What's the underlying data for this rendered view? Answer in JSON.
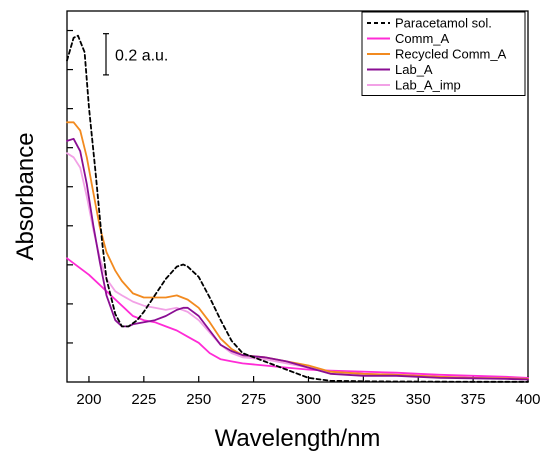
{
  "chart_data": {
    "type": "line",
    "title": "",
    "xlabel": "Wavelength/nm",
    "ylabel": "Absorbance",
    "xlim": [
      190,
      400
    ],
    "ylim": [
      0,
      1.8
    ],
    "x_ticks": [
      200,
      225,
      250,
      275,
      300,
      325,
      350,
      375,
      400
    ],
    "x_tick_labels": [
      "200",
      "225",
      "250",
      "275",
      "300",
      "325",
      "350",
      "375",
      "400"
    ],
    "y_tick_labels_shown": false,
    "grid": false,
    "legend_position": "top-right",
    "scale_bar": {
      "label": "0.2 a.u.",
      "value": 0.2
    },
    "series": [
      {
        "name": "Paracetamol sol.",
        "color": "#000000",
        "style": "dashed",
        "x": [
          190,
          193,
          195,
          198,
          200,
          203,
          206,
          208,
          212,
          215,
          218,
          222,
          225,
          230,
          235,
          240,
          243,
          245,
          250,
          255,
          260,
          265,
          270,
          280,
          290,
          300,
          310,
          330,
          350,
          375,
          400
        ],
        "y": [
          1.56,
          1.67,
          1.68,
          1.6,
          1.33,
          1.02,
          0.68,
          0.5,
          0.33,
          0.27,
          0.27,
          0.3,
          0.34,
          0.42,
          0.5,
          0.56,
          0.57,
          0.56,
          0.51,
          0.41,
          0.3,
          0.2,
          0.14,
          0.1,
          0.06,
          0.02,
          0.006,
          0.003,
          0.002,
          0.001,
          0.001
        ]
      },
      {
        "name": "Comm_A",
        "color": "#ff2bd6",
        "style": "solid",
        "x": [
          190,
          200,
          210,
          220,
          225,
          230,
          235,
          240,
          245,
          250,
          255,
          260,
          265,
          270,
          280,
          290,
          300,
          310,
          325,
          340,
          350,
          360,
          375,
          390,
          400
        ],
        "y": [
          0.6,
          0.52,
          0.42,
          0.32,
          0.3,
          0.29,
          0.27,
          0.25,
          0.22,
          0.19,
          0.14,
          0.11,
          0.1,
          0.09,
          0.08,
          0.07,
          0.06,
          0.055,
          0.05,
          0.045,
          0.04,
          0.035,
          0.03,
          0.025,
          0.02
        ]
      },
      {
        "name": "Recycled Comm_A",
        "color": "#f28a1f",
        "style": "solid",
        "x": [
          190,
          193,
          196,
          199,
          202,
          205,
          208,
          212,
          215,
          220,
          225,
          230,
          235,
          240,
          245,
          250,
          255,
          260,
          265,
          270,
          280,
          290,
          300,
          310,
          325,
          340,
          350,
          360,
          375,
          390,
          400
        ],
        "y": [
          1.26,
          1.26,
          1.22,
          1.09,
          0.92,
          0.75,
          0.63,
          0.54,
          0.49,
          0.43,
          0.41,
          0.41,
          0.41,
          0.42,
          0.4,
          0.36,
          0.29,
          0.21,
          0.16,
          0.13,
          0.12,
          0.1,
          0.08,
          0.05,
          0.04,
          0.035,
          0.03,
          0.025,
          0.02,
          0.018,
          0.015
        ]
      },
      {
        "name": "Lab_A",
        "color": "#8a0e93",
        "style": "solid",
        "x": [
          190,
          193,
          196,
          199,
          202,
          205,
          208,
          212,
          215,
          218,
          220,
          225,
          230,
          235,
          240,
          243,
          245,
          250,
          255,
          260,
          265,
          270,
          280,
          290,
          300,
          310,
          325,
          340,
          350,
          360,
          375,
          390,
          400
        ],
        "y": [
          1.17,
          1.18,
          1.12,
          0.96,
          0.76,
          0.58,
          0.42,
          0.3,
          0.27,
          0.27,
          0.28,
          0.29,
          0.3,
          0.32,
          0.35,
          0.36,
          0.36,
          0.32,
          0.25,
          0.18,
          0.15,
          0.13,
          0.12,
          0.1,
          0.07,
          0.04,
          0.03,
          0.03,
          0.025,
          0.02,
          0.018,
          0.015,
          0.012
        ]
      },
      {
        "name": "Lab_A_imp",
        "color": "#f2a1e6",
        "style": "solid",
        "x": [
          190,
          193,
          196,
          199,
          202,
          205,
          208,
          212,
          215,
          220,
          225,
          230,
          235,
          240,
          245,
          250,
          255,
          260,
          265,
          270,
          280,
          290,
          300,
          310,
          325,
          340,
          350,
          360,
          375,
          390,
          400
        ],
        "y": [
          1.11,
          1.09,
          1.04,
          0.9,
          0.74,
          0.6,
          0.5,
          0.44,
          0.42,
          0.39,
          0.37,
          0.36,
          0.35,
          0.36,
          0.34,
          0.3,
          0.24,
          0.18,
          0.14,
          0.12,
          0.11,
          0.09,
          0.07,
          0.05,
          0.04,
          0.035,
          0.03,
          0.025,
          0.02,
          0.018,
          0.015
        ]
      }
    ]
  }
}
